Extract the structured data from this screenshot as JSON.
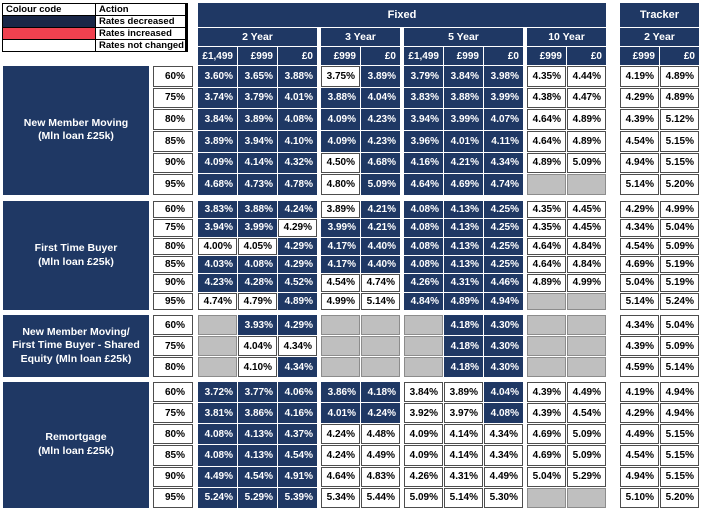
{
  "colors": {
    "rates_decreased_navy": "#1F3864",
    "rates_increased_red": "#F0414F",
    "rates_not_changed_white": "#FFFFFF",
    "no_product_gray": "#BFBFBF"
  },
  "legend": {
    "headers": [
      "Colour code",
      "Action"
    ],
    "rows": [
      {
        "swatch": "navy",
        "action": "Rates decreased"
      },
      {
        "swatch": "red",
        "action": "Rates increased"
      },
      {
        "swatch": "white",
        "action": "Rates not changed"
      }
    ]
  },
  "table": {
    "fixed_label": "Fixed",
    "tracker_label": "Tracker",
    "fixed_groups": [
      {
        "term": "2 Year",
        "fees": [
          "£1,499",
          "£999",
          "£0"
        ]
      },
      {
        "term": "3 Year",
        "fees": [
          "£999",
          "£0"
        ]
      },
      {
        "term": "5 Year",
        "fees": [
          "£1,499",
          "£999",
          "£0"
        ]
      },
      {
        "term": "10 Year",
        "fees": [
          "£999",
          "£0"
        ]
      }
    ],
    "tracker_group": {
      "term": "2 Year",
      "fees": [
        "£999",
        "£0"
      ]
    },
    "cell_style_key": {
      "d": "rates decreased (navy)",
      "n": "rates not changed (white)",
      "g": "no product (gray)"
    },
    "blocks": [
      {
        "label_lines": [
          "New Member Moving",
          "(Mln loan £25k)"
        ],
        "rows": [
          {
            "ltv": "60%",
            "cells": [
              "3.60%|d",
              "3.65%|d",
              "3.88%|d",
              "3.75%|n",
              "3.89%|d",
              "3.79%|d",
              "3.84%|d",
              "3.98%|d",
              "4.35%|n",
              "4.44%|n"
            ],
            "tracker": [
              "4.19%|n",
              "4.89%|n"
            ]
          },
          {
            "ltv": "75%",
            "cells": [
              "3.74%|d",
              "3.79%|d",
              "4.01%|d",
              "3.88%|d",
              "4.04%|d",
              "3.83%|d",
              "3.88%|d",
              "3.99%|d",
              "4.38%|n",
              "4.47%|n"
            ],
            "tracker": [
              "4.29%|n",
              "4.89%|n"
            ]
          },
          {
            "ltv": "80%",
            "cells": [
              "3.84%|d",
              "3.89%|d",
              "4.08%|d",
              "4.09%|d",
              "4.23%|d",
              "3.94%|d",
              "3.99%|d",
              "4.07%|d",
              "4.64%|n",
              "4.89%|n"
            ],
            "tracker": [
              "4.39%|n",
              "5.12%|n"
            ]
          },
          {
            "ltv": "85%",
            "cells": [
              "3.89%|d",
              "3.94%|d",
              "4.10%|d",
              "4.09%|d",
              "4.23%|d",
              "3.96%|d",
              "4.01%|d",
              "4.11%|d",
              "4.64%|n",
              "4.89%|n"
            ],
            "tracker": [
              "4.54%|n",
              "5.15%|n"
            ]
          },
          {
            "ltv": "90%",
            "cells": [
              "4.09%|d",
              "4.14%|d",
              "4.32%|d",
              "4.50%|n",
              "4.68%|d",
              "4.16%|d",
              "4.21%|d",
              "4.34%|d",
              "4.89%|n",
              "5.09%|n"
            ],
            "tracker": [
              "4.94%|n",
              "5.15%|n"
            ]
          },
          {
            "ltv": "95%",
            "cells": [
              "4.68%|d",
              "4.73%|d",
              "4.78%|d",
              "4.80%|n",
              "5.09%|d",
              "4.64%|d",
              "4.69%|d",
              "4.74%|d",
              "|g",
              "|g"
            ],
            "tracker": [
              "5.14%|n",
              "5.20%|n"
            ]
          }
        ]
      },
      {
        "label_lines": [
          "First Time Buyer",
          "(Mln loan £25k)"
        ],
        "rows": [
          {
            "ltv": "60%",
            "cells": [
              "3.83%|d",
              "3.88%|d",
              "4.24%|d",
              "3.89%|n",
              "4.21%|d",
              "4.08%|d",
              "4.13%|d",
              "4.25%|d",
              "4.35%|n",
              "4.45%|n"
            ],
            "tracker": [
              "4.29%|n",
              "4.99%|n"
            ]
          },
          {
            "ltv": "75%",
            "cells": [
              "3.94%|d",
              "3.99%|d",
              "4.29%|n",
              "3.99%|d",
              "4.21%|d",
              "4.08%|d",
              "4.13%|d",
              "4.25%|d",
              "4.35%|n",
              "4.45%|n"
            ],
            "tracker": [
              "4.34%|n",
              "5.04%|n"
            ]
          },
          {
            "ltv": "80%",
            "cells": [
              "4.00%|n",
              "4.05%|n",
              "4.29%|d",
              "4.17%|d",
              "4.40%|d",
              "4.08%|d",
              "4.13%|d",
              "4.25%|d",
              "4.64%|n",
              "4.84%|n"
            ],
            "tracker": [
              "4.54%|n",
              "5.09%|n"
            ]
          },
          {
            "ltv": "85%",
            "cells": [
              "4.03%|d",
              "4.08%|d",
              "4.29%|d",
              "4.17%|d",
              "4.40%|d",
              "4.08%|d",
              "4.13%|d",
              "4.25%|d",
              "4.64%|n",
              "4.84%|n"
            ],
            "tracker": [
              "4.69%|n",
              "5.19%|n"
            ]
          },
          {
            "ltv": "90%",
            "cells": [
              "4.23%|d",
              "4.28%|d",
              "4.52%|d",
              "4.54%|n",
              "4.74%|n",
              "4.26%|d",
              "4.31%|d",
              "4.46%|d",
              "4.89%|n",
              "4.99%|n"
            ],
            "tracker": [
              "5.04%|n",
              "5.19%|n"
            ]
          },
          {
            "ltv": "95%",
            "cells": [
              "4.74%|n",
              "4.79%|n",
              "4.89%|d",
              "4.99%|n",
              "5.14%|n",
              "4.84%|d",
              "4.89%|d",
              "4.94%|d",
              "|g",
              "|g"
            ],
            "tracker": [
              "5.14%|n",
              "5.24%|n"
            ]
          }
        ]
      },
      {
        "label_lines": [
          "New Member Moving/",
          "First Time Buyer - Shared",
          "Equity (Mln loan £25k)"
        ],
        "rows": [
          {
            "ltv": "60%",
            "cells": [
              "|g",
              "3.93%|d",
              "4.29%|d",
              "|g",
              "|g",
              "|g",
              "4.18%|d",
              "4.30%|d",
              "|g",
              "|g"
            ],
            "tracker": [
              "4.34%|n",
              "5.04%|n"
            ]
          },
          {
            "ltv": "75%",
            "cells": [
              "|g",
              "4.04%|n",
              "4.34%|n",
              "|g",
              "|g",
              "|g",
              "4.18%|d",
              "4.30%|d",
              "|g",
              "|g"
            ],
            "tracker": [
              "4.39%|n",
              "5.09%|n"
            ]
          },
          {
            "ltv": "80%",
            "cells": [
              "|g",
              "4.10%|n",
              "4.34%|d",
              "|g",
              "|g",
              "|g",
              "4.18%|d",
              "4.30%|d",
              "|g",
              "|g"
            ],
            "tracker": [
              "4.59%|n",
              "5.14%|n"
            ]
          }
        ]
      },
      {
        "label_lines": [
          "Remortgage",
          "(Mln loan £25k)"
        ],
        "rows": [
          {
            "ltv": "60%",
            "cells": [
              "3.72%|d",
              "3.77%|d",
              "4.06%|d",
              "3.86%|d",
              "4.18%|d",
              "3.84%|n",
              "3.89%|n",
              "4.04%|d",
              "4.39%|n",
              "4.49%|n"
            ],
            "tracker": [
              "4.19%|n",
              "4.94%|n"
            ]
          },
          {
            "ltv": "75%",
            "cells": [
              "3.81%|d",
              "3.86%|d",
              "4.16%|d",
              "4.01%|d",
              "4.24%|d",
              "3.92%|n",
              "3.97%|n",
              "4.08%|d",
              "4.39%|n",
              "4.54%|n"
            ],
            "tracker": [
              "4.29%|n",
              "4.94%|n"
            ]
          },
          {
            "ltv": "80%",
            "cells": [
              "4.08%|d",
              "4.13%|d",
              "4.37%|d",
              "4.24%|n",
              "4.48%|n",
              "4.09%|n",
              "4.14%|n",
              "4.34%|n",
              "4.69%|n",
              "5.09%|n"
            ],
            "tracker": [
              "4.49%|n",
              "5.15%|n"
            ]
          },
          {
            "ltv": "85%",
            "cells": [
              "4.08%|d",
              "4.13%|d",
              "4.54%|d",
              "4.24%|n",
              "4.49%|n",
              "4.09%|n",
              "4.14%|n",
              "4.34%|n",
              "4.69%|n",
              "5.09%|n"
            ],
            "tracker": [
              "4.54%|n",
              "5.15%|n"
            ]
          },
          {
            "ltv": "90%",
            "cells": [
              "4.49%|d",
              "4.54%|d",
              "4.91%|d",
              "4.64%|n",
              "4.83%|n",
              "4.26%|n",
              "4.31%|n",
              "4.49%|n",
              "5.04%|n",
              "5.29%|n"
            ],
            "tracker": [
              "4.94%|n",
              "5.15%|n"
            ]
          },
          {
            "ltv": "95%",
            "cells": [
              "5.24%|d",
              "5.29%|d",
              "5.39%|d",
              "5.34%|n",
              "5.44%|n",
              "5.09%|n",
              "5.14%|n",
              "5.30%|n",
              "|g",
              "|g"
            ],
            "tracker": [
              "5.10%|n",
              "5.20%|n"
            ]
          }
        ]
      }
    ]
  }
}
